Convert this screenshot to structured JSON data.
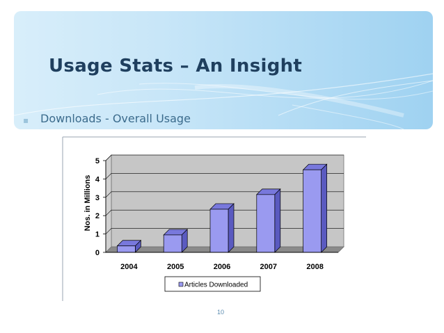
{
  "slide": {
    "title": "Usage Stats – An Insight",
    "bullet": "Downloads - Overall Usage",
    "bullet_icon": "square-bullet-icon",
    "page_number": "10"
  },
  "colors": {
    "title": "#1f3f5e",
    "bullet_text": "#3b6b8c",
    "bar_front": "#9a9af0",
    "bar_top": "#7878dc",
    "bar_side": "#5a5ac0",
    "plot_bg": "#c6c6c6"
  },
  "chart_data": {
    "type": "bar",
    "categories": [
      "2004",
      "2005",
      "2006",
      "2007",
      "2008"
    ],
    "series": [
      {
        "name": "Articles Downloaded",
        "values": [
          0.35,
          0.95,
          2.35,
          3.15,
          4.5
        ]
      }
    ],
    "title": "",
    "xlabel": "",
    "ylabel": "Nos. in Millions",
    "ylim": [
      0,
      5
    ],
    "yticks": [
      "0",
      "1",
      "2",
      "3",
      "4",
      "5"
    ],
    "grid": true,
    "legend": "bottom",
    "style": "3d"
  }
}
